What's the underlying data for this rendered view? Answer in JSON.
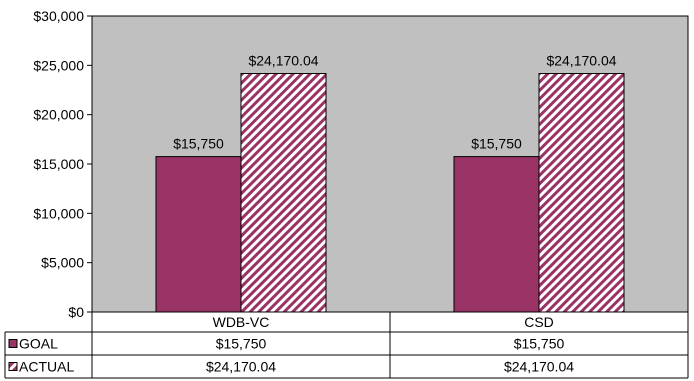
{
  "chart_data": {
    "type": "bar",
    "categories": [
      "WDB-VC",
      "CSD"
    ],
    "series": [
      {
        "name": "GOAL",
        "values": [
          15750,
          15750
        ],
        "labels": [
          "$15,750",
          "$15,750"
        ],
        "color": "#993366",
        "pattern": "solid"
      },
      {
        "name": "ACTUAL",
        "values": [
          24170.04,
          24170.04
        ],
        "labels": [
          "$24,170.04",
          "$24,170.04"
        ],
        "color": "#993366",
        "pattern": "diagonal-stripes"
      }
    ],
    "ylim": [
      0,
      30000
    ],
    "yticks": [
      0,
      5000,
      10000,
      15000,
      20000,
      25000,
      30000
    ],
    "ytick_labels": [
      "$0",
      "$5,000",
      "$10,000",
      "$15,000",
      "$20,000",
      "$25,000",
      "$30,000"
    ],
    "plot_background": "#c0c0c0",
    "grid": false,
    "legend": "data-table-left",
    "data_table": true
  }
}
